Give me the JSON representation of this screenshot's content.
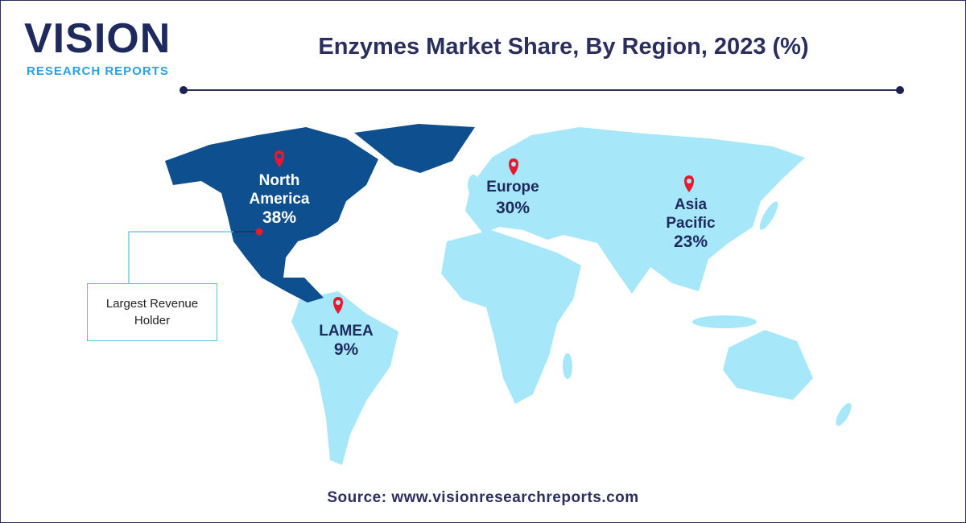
{
  "logo": {
    "word": "VISION",
    "sub": "RESEARCH REPORTS"
  },
  "title": "Enzymes Market Share, By Region, 2023 (%)",
  "colors": {
    "highlight_region": "#0d4f8f",
    "other_regions": "#a6e8fa",
    "marker": "#e8192c",
    "title": "#2b2f5e"
  },
  "regions": [
    {
      "name": "North America",
      "line1": "North",
      "line2": "America",
      "share": "38%",
      "value": 38,
      "highlighted": true
    },
    {
      "name": "Europe",
      "line1": "Europe",
      "share": "30%",
      "value": 30
    },
    {
      "name": "Asia Pacific",
      "line1": "Asia",
      "line2": "Pacific",
      "share": "23%",
      "value": 23
    },
    {
      "name": "LAMEA",
      "line1": "LAMEA",
      "share": "9%",
      "value": 9
    }
  ],
  "callout": "Largest Revenue Holder",
  "source": "Source: www.visionresearchreports.com"
}
